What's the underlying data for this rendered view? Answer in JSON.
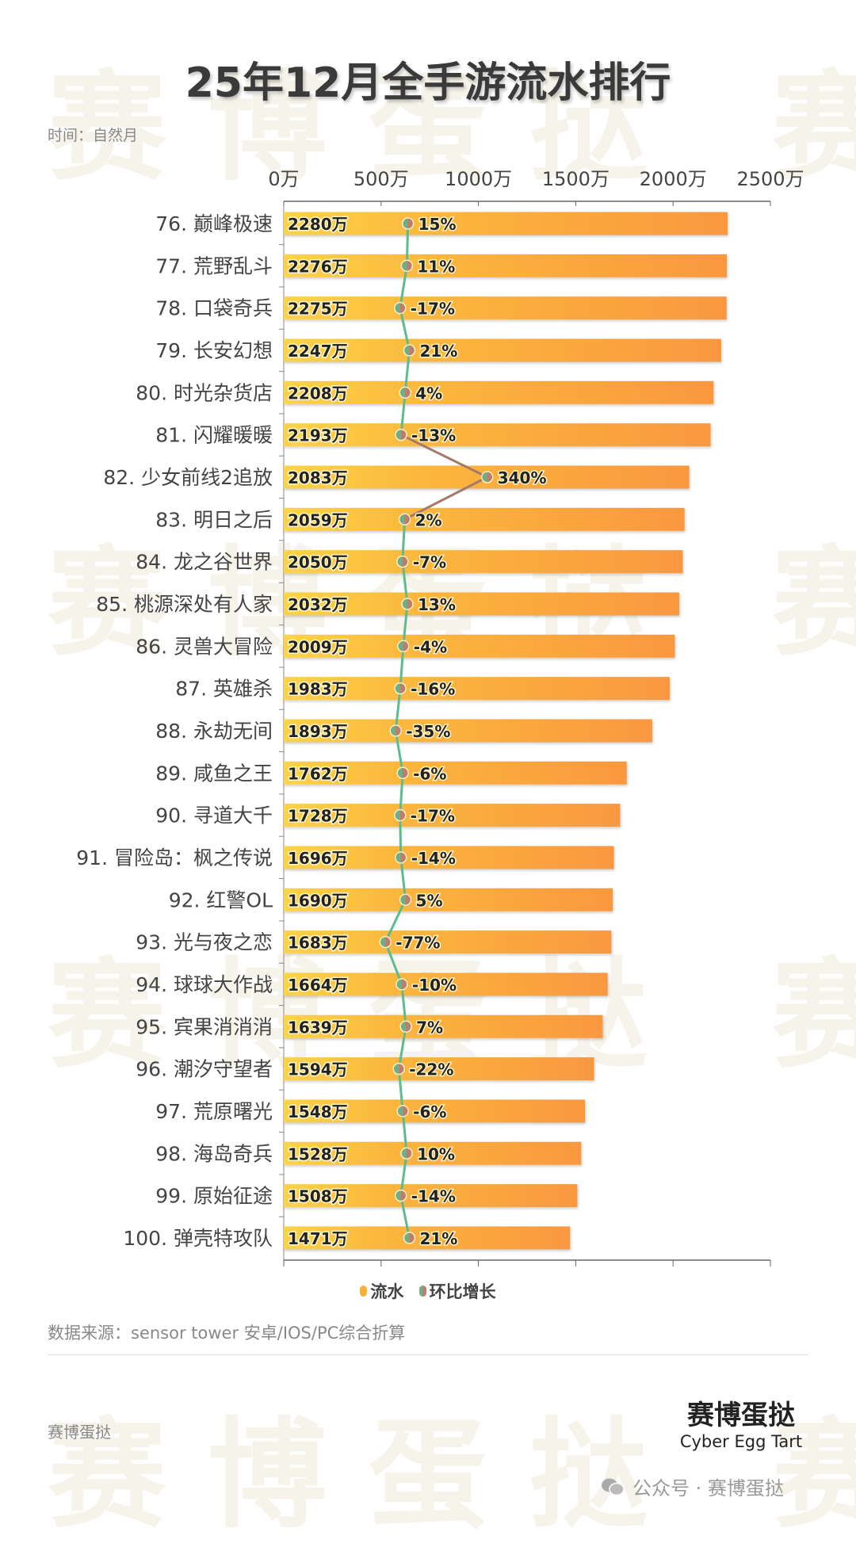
{
  "title": "25年12月全手游流水排行",
  "subtitle": "时间：自然月",
  "watermark": "赛博蛋挞 Cyber Egg Tart",
  "chart_data": {
    "type": "bar+line",
    "orientation": "horizontal",
    "title": "25年12月全手游流水排行",
    "xlim": [
      0,
      2500
    ],
    "x_ticks": [
      "0万",
      "500万",
      "1000万",
      "1500万",
      "2000万",
      "2500万"
    ],
    "categories": [
      "76. 巅峰极速",
      "77. 荒野乱斗",
      "78. 口袋奇兵",
      "79. 长安幻想",
      "80. 时光杂货店",
      "81. 闪耀暖暖",
      "82. 少女前线2追放",
      "83. 明日之后",
      "84. 龙之谷世界",
      "85. 桃源深处有人家",
      "86. 灵兽大冒险",
      "87. 英雄杀",
      "88. 永劫无间",
      "89. 咸鱼之王",
      "90. 寻道大千",
      "91. 冒险岛：枫之传说",
      "92. 红警OL",
      "93. 光与夜之恋",
      "94. 球球大作战",
      "95. 宾果消消消",
      "96. 潮汐守望者",
      "97. 荒原曙光",
      "98. 海岛奇兵",
      "99. 原始征途",
      "100. 弹壳特攻队"
    ],
    "series": [
      {
        "name": "流水",
        "unit": "万",
        "values": [
          2280,
          2276,
          2275,
          2247,
          2208,
          2193,
          2083,
          2059,
          2050,
          2032,
          2009,
          1983,
          1893,
          1762,
          1728,
          1696,
          1690,
          1683,
          1664,
          1639,
          1594,
          1548,
          1528,
          1508,
          1471
        ],
        "color": "#f7a53a"
      },
      {
        "name": "环比增长",
        "unit": "%",
        "values": [
          15,
          11,
          -17,
          21,
          4,
          -13,
          340,
          2,
          -7,
          13,
          -4,
          -16,
          -35,
          -6,
          -17,
          -14,
          5,
          -77,
          -10,
          7,
          -22,
          -6,
          10,
          -14,
          21
        ],
        "color": "#5dbb8e"
      }
    ],
    "legend": "bottom",
    "grid": false
  },
  "legend": {
    "items": [
      {
        "label": "流水",
        "color": "#f7b23a"
      },
      {
        "label": "环比增长",
        "color": "#8a8a6a"
      }
    ]
  },
  "source": "数据来源：sensor tower 安卓/IOS/PC综合折算",
  "brand_left": "赛博蛋挞",
  "logo": {
    "cn": "赛博蛋挞",
    "en": "Cyber Egg Tart"
  },
  "wechat": "公众号 · 赛博蛋挞",
  "icons": {
    "wechat": "wechat-icon"
  }
}
